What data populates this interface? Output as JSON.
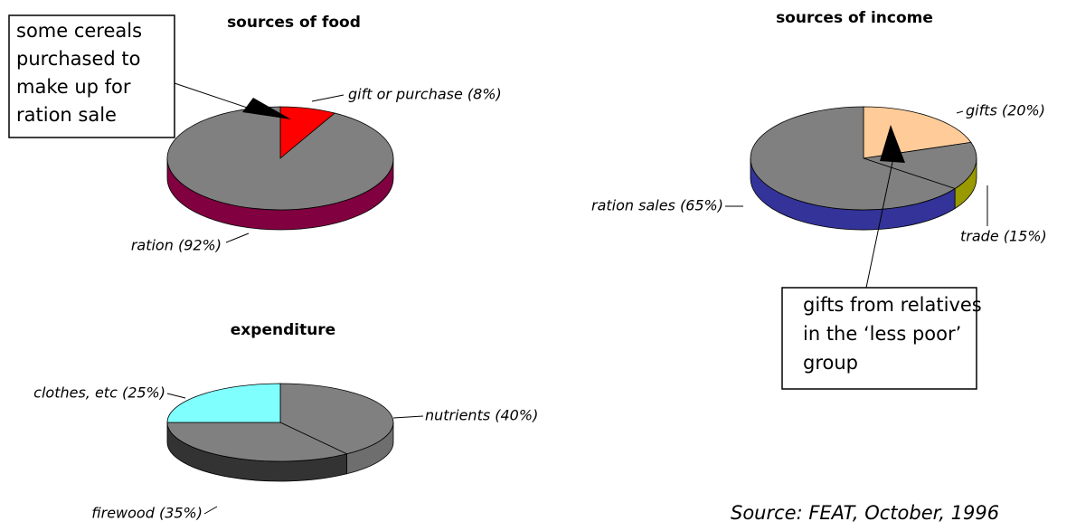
{
  "chart_data": [
    {
      "type": "pie",
      "title": "sources of food",
      "categories": [
        "gift or purchase (8%)",
        "ration (92%)"
      ],
      "values": [
        8,
        92
      ],
      "colors": [
        "#ff0000",
        "#808080"
      ],
      "side_colors": [
        "#a00000",
        "#800040"
      ],
      "annotation": [
        "some cereals",
        "purchased to",
        "make up for",
        "ration sale"
      ]
    },
    {
      "type": "pie",
      "title": "sources of income",
      "categories": [
        "gifts (20%)",
        "trade (15%)",
        "ration sales (65%)"
      ],
      "values": [
        20,
        15,
        65
      ],
      "colors": [
        "#ffcc99",
        "#808080",
        "#808080"
      ],
      "side_colors": [
        "#cc9966",
        "#999900",
        "#333399"
      ],
      "annotation": [
        "gifts from relatives",
        "in the ‘less poor’",
        "group"
      ]
    },
    {
      "type": "pie",
      "title": "expenditure",
      "categories": [
        "nutrients (40%)",
        "firewood (35%)",
        "clothes, etc (25%)"
      ],
      "values": [
        40,
        35,
        25
      ],
      "colors": [
        "#808080",
        "#808080",
        "#80ffff"
      ],
      "side_colors": [
        "#6e6e6e",
        "#333333",
        "#40a0a0"
      ]
    }
  ],
  "source": "Source: FEAT, October, 1996"
}
